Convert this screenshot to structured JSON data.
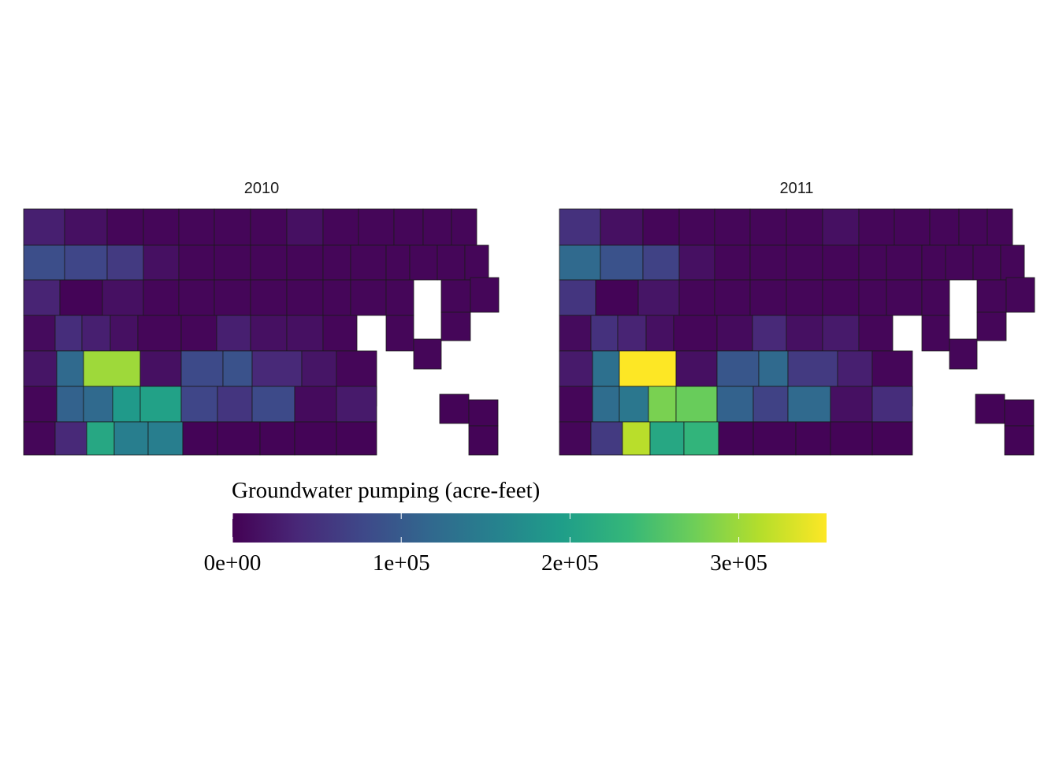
{
  "chart_data": {
    "type": "choropleth",
    "facets": [
      "2010",
      "2011"
    ],
    "legend": {
      "title": "Groundwater pumping (acre-feet)",
      "scale": "viridis",
      "range": [
        0,
        352000
      ],
      "ticks": [
        0,
        100000,
        200000,
        300000
      ],
      "tick_labels": [
        "0e+00",
        "1e+05",
        "2e+05",
        "3e+05"
      ],
      "placement": "bottom"
    },
    "missing_color": "#ffffff",
    "border_color": "#1a1a1a",
    "values_2010": [
      30000,
      15000,
      5000,
      5000,
      5000,
      5000,
      5000,
      15000,
      5000,
      5000,
      5000,
      5000,
      5000,
      85000,
      75000,
      60000,
      15000,
      5000,
      5000,
      5000,
      5000,
      5000,
      5000,
      5000,
      5000,
      5000,
      5000,
      35000,
      3000,
      15000,
      5000,
      5000,
      5000,
      5000,
      5000,
      5000,
      5000,
      5000,
      5000,
      5000,
      10000,
      45000,
      30000,
      15000,
      5000,
      5000,
      30000,
      15000,
      15000,
      5000,
      5000,
      5000,
      5000,
      20000,
      120000,
      300000,
      15000,
      80000,
      90000,
      40000,
      20000,
      5000,
      5000,
      110000,
      120000,
      190000,
      200000,
      75000,
      55000,
      80000,
      10000,
      25000,
      5000,
      40000,
      210000,
      150000,
      150000,
      3000,
      3000,
      3000,
      3000,
      3000,
      3000,
      3000,
      3000,
      3000
    ],
    "values_2011": [
      50000,
      15000,
      5000,
      5000,
      5000,
      5000,
      5000,
      15000,
      5000,
      5000,
      5000,
      5000,
      5000,
      120000,
      90000,
      70000,
      15000,
      5000,
      5000,
      5000,
      5000,
      5000,
      5000,
      5000,
      5000,
      5000,
      5000,
      55000,
      3000,
      20000,
      5000,
      5000,
      5000,
      5000,
      5000,
      5000,
      5000,
      5000,
      5000,
      5000,
      10000,
      50000,
      35000,
      15000,
      5000,
      10000,
      40000,
      15000,
      25000,
      5000,
      5000,
      5000,
      5000,
      25000,
      130000,
      352000,
      15000,
      95000,
      120000,
      60000,
      30000,
      5000,
      5000,
      125000,
      140000,
      280000,
      270000,
      110000,
      70000,
      120000,
      15000,
      45000,
      5000,
      60000,
      315000,
      210000,
      230000,
      3000,
      3000,
      3000,
      3000,
      3000,
      3000,
      3000,
      3000,
      3000
    ]
  }
}
